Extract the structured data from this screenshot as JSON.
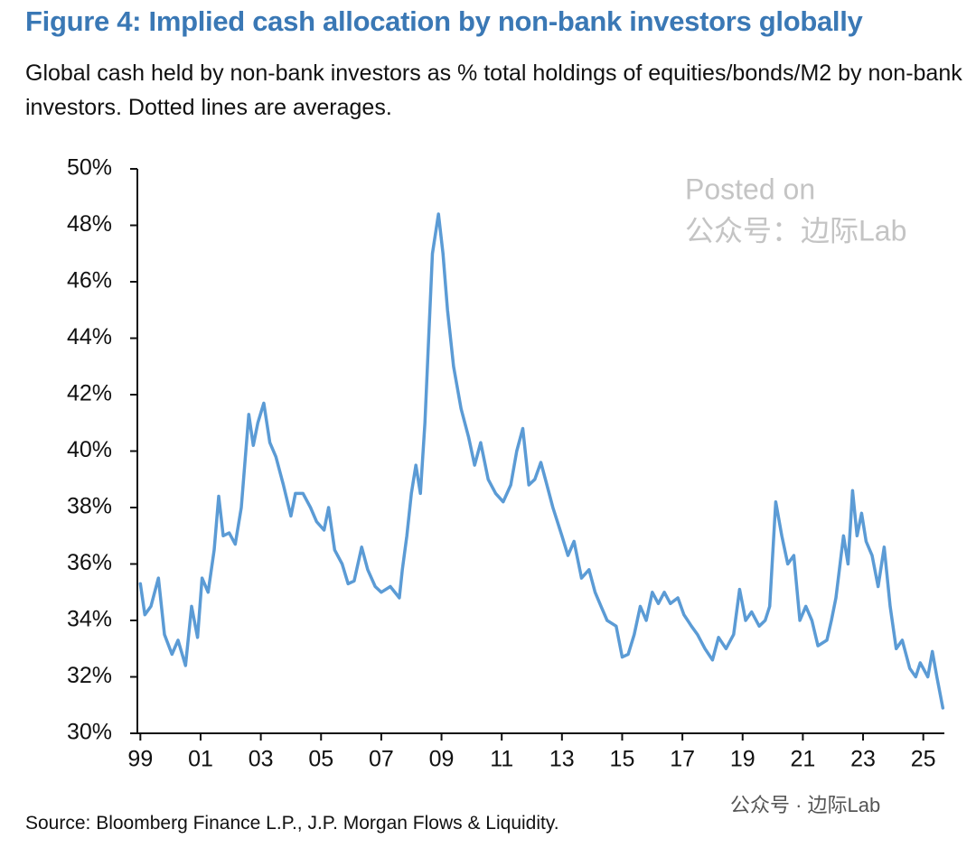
{
  "chart_data": {
    "type": "line",
    "title": "Figure 4: Implied cash allocation by non-bank investors globally",
    "subtitle": "Global cash held by non-bank investors as % total holdings of equities/bonds/M2 by non-bank investors. Dotted lines are averages.",
    "source": "Source: Bloomberg Finance L.P., J.P. Morgan Flows & Liquidity.",
    "watermark": [
      "Posted on",
      "公众号：边际Lab",
      "公众号 · 边际Lab"
    ],
    "color": "#5b9bd5",
    "xlim": [
      1998.9,
      2025.7
    ],
    "ylim": [
      30,
      50
    ],
    "xticks": [
      {
        "value": 1999,
        "label": "99"
      },
      {
        "value": 2001,
        "label": "01"
      },
      {
        "value": 2003,
        "label": "03"
      },
      {
        "value": 2005,
        "label": "05"
      },
      {
        "value": 2007,
        "label": "07"
      },
      {
        "value": 2009,
        "label": "09"
      },
      {
        "value": 2011,
        "label": "11"
      },
      {
        "value": 2013,
        "label": "13"
      },
      {
        "value": 2015,
        "label": "15"
      },
      {
        "value": 2017,
        "label": "17"
      },
      {
        "value": 2019,
        "label": "19"
      },
      {
        "value": 2021,
        "label": "21"
      },
      {
        "value": 2023,
        "label": "23"
      },
      {
        "value": 2025,
        "label": "25"
      }
    ],
    "yticks": [
      {
        "value": 30,
        "label": "30%"
      },
      {
        "value": 32,
        "label": "32%"
      },
      {
        "value": 34,
        "label": "34%"
      },
      {
        "value": 36,
        "label": "36%"
      },
      {
        "value": 38,
        "label": "38%"
      },
      {
        "value": 40,
        "label": "40%"
      },
      {
        "value": 42,
        "label": "42%"
      },
      {
        "value": 44,
        "label": "44%"
      },
      {
        "value": 46,
        "label": "46%"
      },
      {
        "value": 48,
        "label": "48%"
      },
      {
        "value": 50,
        "label": "50%"
      }
    ],
    "x": [
      1999.0,
      1999.15,
      1999.35,
      1999.6,
      1999.8,
      2000.05,
      2000.25,
      2000.5,
      2000.7,
      2000.9,
      2001.05,
      2001.25,
      2001.45,
      2001.6,
      2001.75,
      2001.95,
      2002.15,
      2002.35,
      2002.6,
      2002.75,
      2002.9,
      2003.1,
      2003.3,
      2003.5,
      2003.75,
      2004.0,
      2004.15,
      2004.4,
      2004.65,
      2004.85,
      2005.1,
      2005.25,
      2005.45,
      2005.7,
      2005.9,
      2006.1,
      2006.35,
      2006.55,
      2006.8,
      2007.0,
      2007.3,
      2007.6,
      2007.7,
      2007.85,
      2008.0,
      2008.15,
      2008.3,
      2008.45,
      2008.7,
      2008.9,
      2009.05,
      2009.2,
      2009.4,
      2009.65,
      2009.9,
      2010.1,
      2010.3,
      2010.55,
      2010.8,
      2011.05,
      2011.3,
      2011.5,
      2011.7,
      2011.9,
      2012.1,
      2012.3,
      2012.5,
      2012.7,
      2013.0,
      2013.2,
      2013.4,
      2013.65,
      2013.9,
      2014.1,
      2014.3,
      2014.5,
      2014.8,
      2015.0,
      2015.2,
      2015.4,
      2015.6,
      2015.8,
      2016.0,
      2016.2,
      2016.4,
      2016.6,
      2016.85,
      2017.05,
      2017.3,
      2017.5,
      2017.75,
      2018.0,
      2018.2,
      2018.45,
      2018.7,
      2018.9,
      2019.1,
      2019.3,
      2019.55,
      2019.75,
      2019.9,
      2020.1,
      2020.3,
      2020.5,
      2020.7,
      2020.9,
      2021.1,
      2021.3,
      2021.5,
      2021.8,
      2021.95,
      2022.1,
      2022.35,
      2022.5,
      2022.65,
      2022.8,
      2022.95,
      2023.1,
      2023.3,
      2023.5,
      2023.7,
      2023.9,
      2024.1,
      2024.3,
      2024.55,
      2024.75,
      2024.9,
      2025.15,
      2025.3,
      2025.45,
      2025.65
    ],
    "values": [
      35.3,
      34.2,
      34.5,
      35.5,
      33.5,
      32.8,
      33.3,
      32.4,
      34.5,
      33.4,
      35.5,
      35.0,
      36.5,
      38.4,
      37.0,
      37.1,
      36.7,
      38.0,
      41.3,
      40.2,
      41.0,
      41.7,
      40.3,
      39.8,
      38.8,
      37.7,
      38.5,
      38.5,
      38.0,
      37.5,
      37.2,
      38.0,
      36.5,
      36.0,
      35.3,
      35.4,
      36.6,
      35.8,
      35.2,
      35.0,
      35.2,
      34.8,
      35.8,
      37.0,
      38.5,
      39.5,
      38.5,
      41.0,
      47.0,
      48.4,
      47.0,
      45.0,
      43.0,
      41.5,
      40.5,
      39.5,
      40.3,
      39.0,
      38.5,
      38.2,
      38.8,
      40.0,
      40.8,
      38.8,
      39.0,
      39.6,
      38.8,
      38.0,
      37.0,
      36.3,
      36.8,
      35.5,
      35.8,
      35.0,
      34.5,
      34.0,
      33.8,
      32.7,
      32.8,
      33.5,
      34.5,
      34.0,
      35.0,
      34.6,
      35.0,
      34.6,
      34.8,
      34.2,
      33.8,
      33.5,
      33.0,
      32.6,
      33.4,
      33.0,
      33.5,
      35.1,
      34.0,
      34.3,
      33.8,
      34.0,
      34.5,
      38.2,
      37.0,
      36.0,
      36.3,
      34.0,
      34.5,
      34.0,
      33.1,
      33.3,
      34.0,
      34.8,
      37.0,
      36.0,
      38.6,
      37.0,
      37.8,
      36.8,
      36.3,
      35.2,
      36.6,
      34.5,
      33.0,
      33.3,
      32.3,
      32.0,
      32.5,
      32.0,
      32.9,
      32.0,
      30.9
    ]
  }
}
